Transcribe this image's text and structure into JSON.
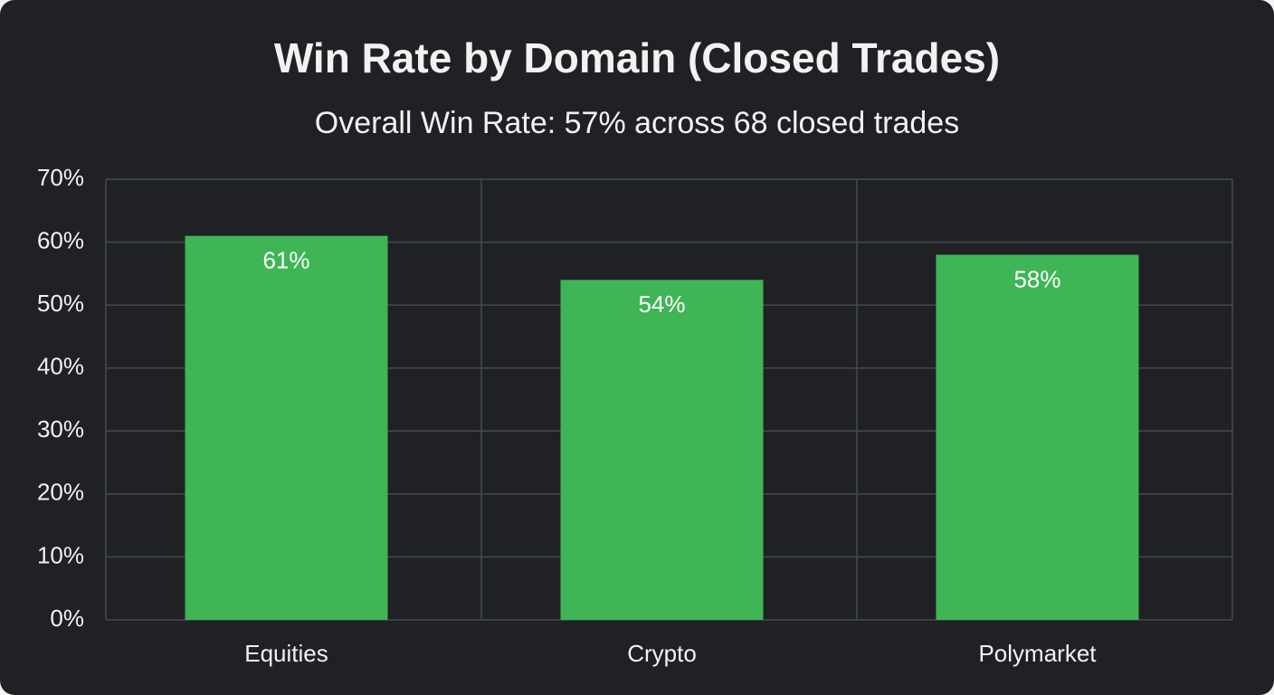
{
  "chart_data": {
    "type": "bar",
    "title": "Win Rate by Domain (Closed Trades)",
    "subtitle": "Overall Win Rate: 57% across 68 closed trades",
    "categories": [
      "Equities",
      "Crypto",
      "Polymarket"
    ],
    "values": [
      61,
      54,
      58
    ],
    "value_labels": [
      "61%",
      "54%",
      "58%"
    ],
    "color": "#3fb556",
    "ylim": [
      0,
      70
    ],
    "yticks": [
      {
        "value": 0,
        "label": "0%"
      },
      {
        "value": 10,
        "label": "10%"
      },
      {
        "value": 20,
        "label": "20%"
      },
      {
        "value": 30,
        "label": "30%"
      },
      {
        "value": 40,
        "label": "40%"
      },
      {
        "value": 50,
        "label": "50%"
      },
      {
        "value": 60,
        "label": "60%"
      },
      {
        "value": 70,
        "label": "70%"
      }
    ],
    "grid": true
  }
}
